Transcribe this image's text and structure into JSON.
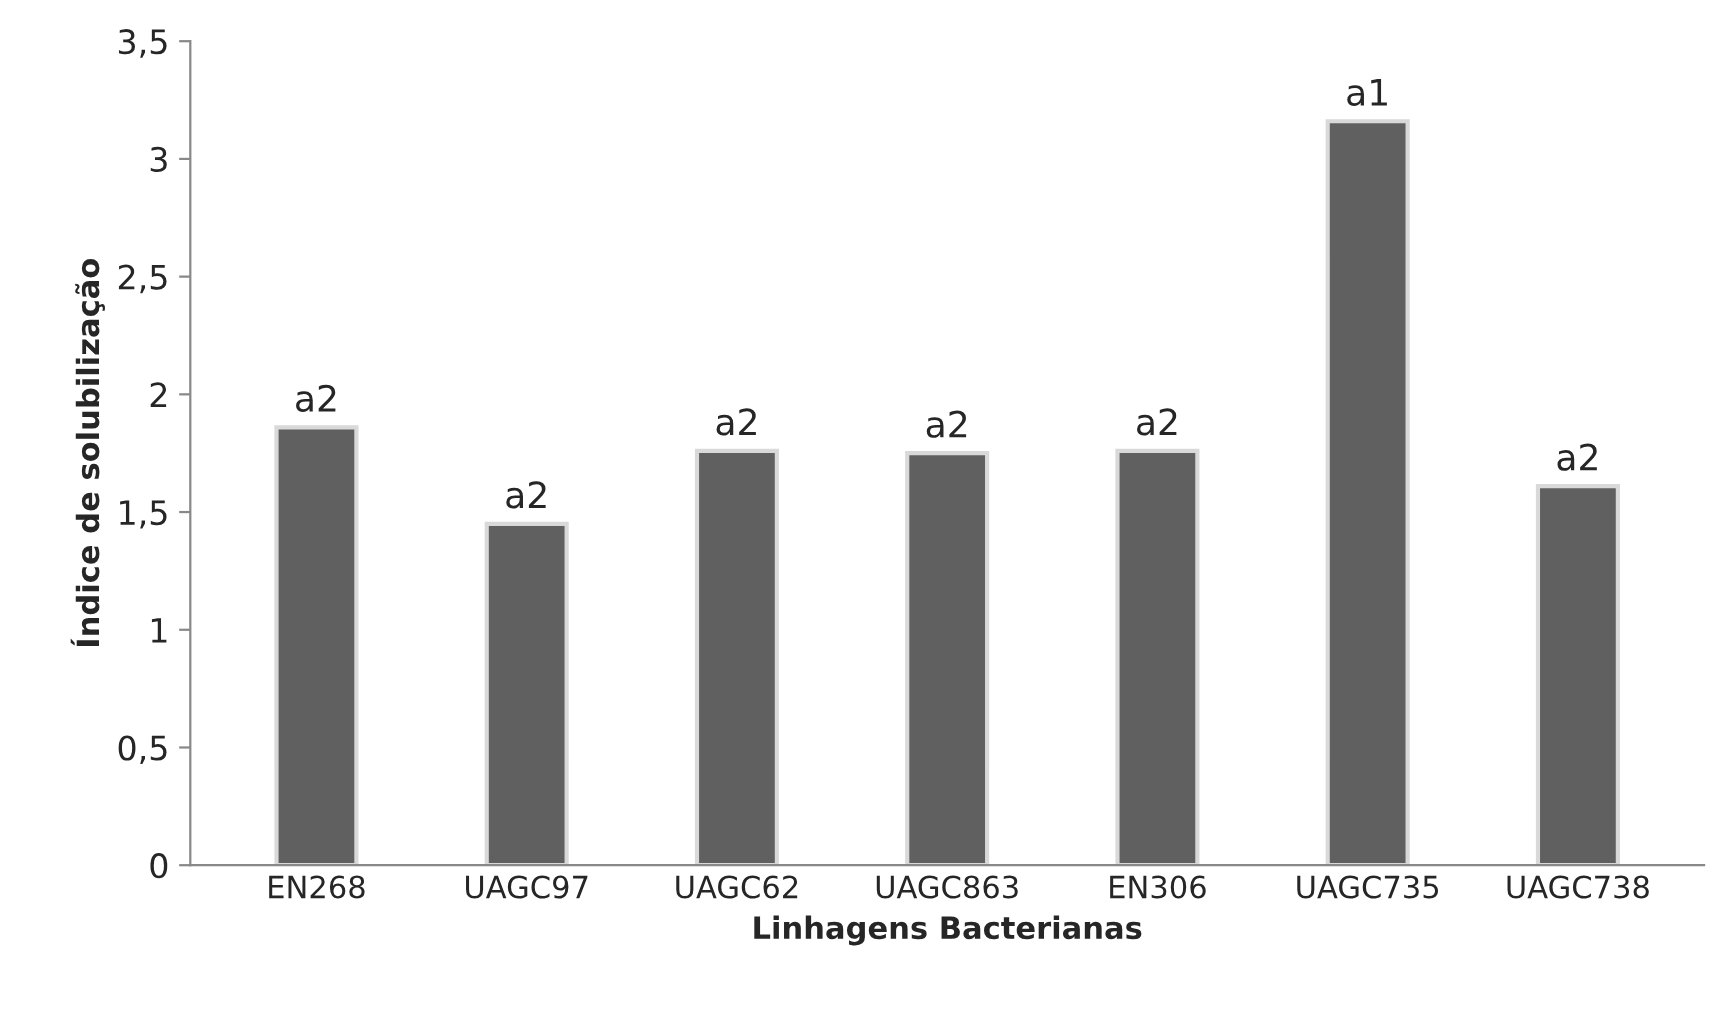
{
  "chart_data": {
    "type": "bar",
    "xlabel": "Linhagens Bacterianas",
    "ylabel": "Índice de solubilização",
    "categories": [
      "EN268",
      "UAGC97",
      "UAGC62",
      "UAGC863",
      "EN306",
      "UAGC735",
      "UAGC738"
    ],
    "values": [
      1.86,
      1.45,
      1.76,
      1.75,
      1.76,
      3.16,
      1.61
    ],
    "value_labels": [
      "a2",
      "a2",
      "a2",
      "a2",
      "a2",
      "a1",
      "a2"
    ],
    "color": "#606060",
    "ylim": [
      0,
      3.5
    ],
    "yticks": [
      0,
      {
        "value": 0.5,
        "label": "0,5"
      },
      1,
      {
        "value": 1.5,
        "label": "1,5"
      },
      2,
      {
        "value": 2.5,
        "label": "2,5"
      },
      3,
      {
        "value": 3.5,
        "label": "3,5"
      }
    ],
    "grid": false
  }
}
